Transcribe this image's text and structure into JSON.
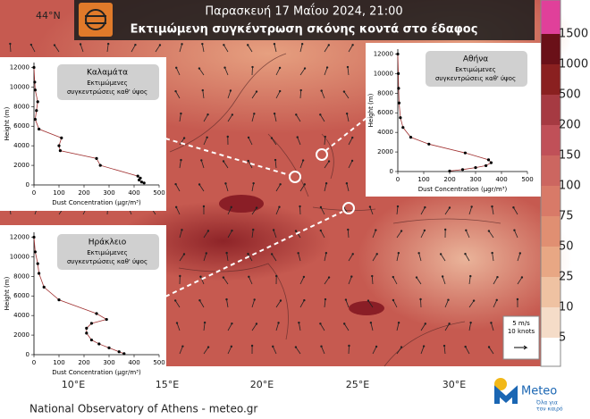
{
  "header": {
    "date": "Παρασκευή 17 Μαΐου 2024, 21:00",
    "title": "Εκτιμώμενη συγκέντρωση σκόνης κοντά στο έδαφος"
  },
  "map": {
    "lat_label": "44°N",
    "lon_labels": [
      "10°E",
      "15°E",
      "20°E",
      "25°E",
      "30°E"
    ]
  },
  "colorbar": {
    "labels": [
      5,
      10,
      25,
      50,
      75,
      100,
      150,
      200,
      500,
      1000,
      1500
    ]
  },
  "wind_legend": {
    "speed": "5 m/s",
    "knots": "10 knots"
  },
  "insets": [
    {
      "station": "Καλαμάτα",
      "subtitle": [
        "Εκτιμώμενες",
        "συγκεντρώσεις καθ' ύψος"
      ],
      "chart_data": {
        "type": "line",
        "x_label": "Dust Concentration (μgr/m³)",
        "y_label": "Height (m)",
        "x": [
          440,
          430,
          420,
          425,
          415,
          265,
          250,
          105,
          100,
          110,
          20,
          5,
          10,
          15,
          5,
          3,
          0
        ],
        "values": [
          200,
          300,
          500,
          700,
          900,
          2000,
          2700,
          3500,
          4000,
          4800,
          5700,
          6700,
          7600,
          8500,
          9700,
          10500,
          12000
        ],
        "xlim": [
          0,
          500
        ],
        "xticks": [
          0,
          100,
          200,
          300,
          400,
          500
        ],
        "ylim": [
          0,
          12500
        ],
        "yticks": [
          0,
          2000,
          4000,
          6000,
          8000,
          10000,
          12000
        ]
      }
    },
    {
      "station": "Αθήνα",
      "subtitle": [
        "Εκτιμώμενες",
        "συγκεντρώσεις καθ' ύψος"
      ],
      "chart_data": {
        "type": "line",
        "x_label": "Dust Concentration (μgr/m³)",
        "y_label": "Height (m)",
        "x": [
          200,
          250,
          300,
          340,
          360,
          350,
          260,
          120,
          50,
          20,
          10,
          5,
          3,
          2,
          0
        ],
        "values": [
          50,
          200,
          400,
          600,
          900,
          1200,
          1900,
          2800,
          3500,
          4500,
          5500,
          7000,
          8500,
          10000,
          12000
        ],
        "xlim": [
          0,
          500
        ],
        "xticks": [
          0,
          100,
          200,
          300,
          400,
          500
        ],
        "ylim": [
          0,
          12500
        ],
        "yticks": [
          0,
          2000,
          4000,
          6000,
          8000,
          10000,
          12000
        ]
      }
    },
    {
      "station": "Ηράκλειο",
      "subtitle": [
        "Εκτιμώμενες",
        "συγκεντρώσεις καθ' ύψος"
      ],
      "chart_data": {
        "type": "line",
        "x_label": "Dust Concentration (μgr/m³)",
        "y_label": "Height (m)",
        "x": [
          360,
          340,
          300,
          260,
          230,
          210,
          210,
          230,
          290,
          250,
          100,
          40,
          20,
          15,
          5,
          0
        ],
        "values": [
          100,
          300,
          700,
          1100,
          1500,
          2200,
          2700,
          3200,
          3600,
          4200,
          5600,
          6900,
          8300,
          9300,
          10500,
          12000
        ],
        "xlim": [
          0,
          500
        ],
        "xticks": [
          0,
          100,
          200,
          300,
          400,
          500
        ],
        "ylim": [
          0,
          12500
        ],
        "yticks": [
          0,
          2000,
          4000,
          6000,
          8000,
          10000,
          12000
        ]
      }
    }
  ],
  "footer": "National Observatory of Athens - meteo.gr",
  "logo": {
    "name": "Meteo",
    "slogan": [
      "Όλα για",
      "τον καιρό"
    ]
  }
}
